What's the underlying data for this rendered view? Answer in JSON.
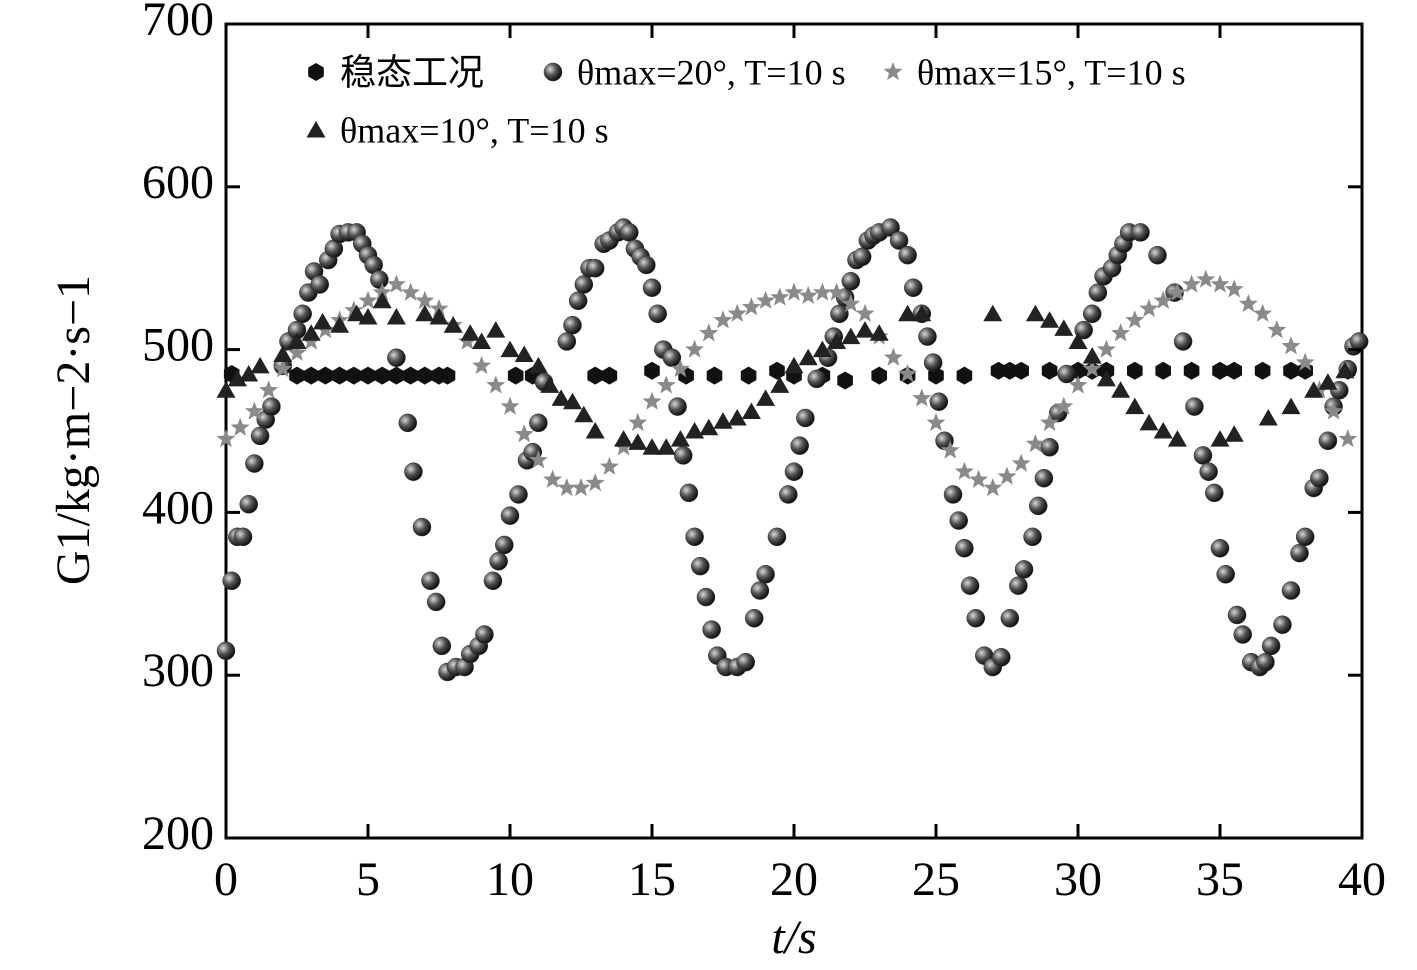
{
  "chart_data": {
    "type": "scatter",
    "xlabel": "t/s",
    "ylabel": "G1/kg·m−2·s−1",
    "xlim": [
      0,
      40
    ],
    "ylim": [
      200,
      700
    ],
    "xticks": [
      0,
      5,
      10,
      15,
      20,
      25,
      30,
      35,
      40
    ],
    "yticks": [
      200,
      300,
      400,
      500,
      600,
      700
    ],
    "series": [
      {
        "name": "稳态工况",
        "color": "#111111",
        "marker": "hexagon",
        "x": [
          0.2,
          2.5,
          3,
          3.5,
          4,
          4.5,
          5,
          5.5,
          6,
          6.5,
          7,
          7.5,
          7.8,
          10.2,
          10.8,
          13,
          13.5,
          15,
          16.2,
          17.2,
          18.4,
          19.4,
          20,
          21,
          21.8,
          23,
          24,
          25,
          26,
          27.2,
          27.6,
          28,
          29,
          30,
          30.5,
          31,
          32,
          33,
          34,
          35,
          35.5,
          36.5,
          37.5,
          38,
          39.5
        ],
        "values": [
          485,
          484,
          484,
          484,
          484,
          484,
          484,
          484,
          484,
          484,
          484,
          484,
          484,
          484,
          484,
          484,
          484,
          487,
          484,
          484,
          484,
          487,
          484,
          484,
          481,
          484,
          484,
          484,
          484,
          487,
          487,
          487,
          487,
          487,
          487,
          487,
          487,
          487,
          487,
          487,
          487,
          487,
          487,
          487,
          487
        ]
      },
      {
        "name": "θmax=20°, T=10 s",
        "color": "#333333",
        "marker": "circle",
        "x": [
          0,
          0.2,
          0.4,
          0.6,
          0.8,
          1.0,
          1.2,
          1.4,
          1.6,
          2,
          2.2,
          2.5,
          2.7,
          2.9,
          3.1,
          3.3,
          3.6,
          3.8,
          4.0,
          4.3,
          4.6,
          4.8,
          5.0,
          5.2,
          5.4,
          6,
          6.4,
          6.6,
          6.9,
          7.2,
          7.4,
          7.6,
          7.8,
          8.1,
          8.4,
          8.6,
          8.9,
          9.1,
          9.4,
          9.6,
          9.8,
          10.0,
          10.3,
          10.6,
          10.8,
          11.0,
          11.2,
          12,
          12.2,
          12.4,
          12.6,
          12.8,
          13,
          13.3,
          13.5,
          13.8,
          14.0,
          14.2,
          14.4,
          14.6,
          14.8,
          15.0,
          15.2,
          15.4,
          15.7,
          15.9,
          16.1,
          16.3,
          16.5,
          16.7,
          16.9,
          17.1,
          17.3,
          17.6,
          18.0,
          18.3,
          18.6,
          18.8,
          19.0,
          19.4,
          19.8,
          20.0,
          20.2,
          20.4,
          20.8,
          21.2,
          21.4,
          21.6,
          21.8,
          22.0,
          22.2,
          22.4,
          22.6,
          22.8,
          23.0,
          23.4,
          23.7,
          24.0,
          24.2,
          24.5,
          24.7,
          24.9,
          25.1,
          25.3,
          25.6,
          25.8,
          26.0,
          26.2,
          26.4,
          26.7,
          27.0,
          27.3,
          27.6,
          27.9,
          28.1,
          28.4,
          28.6,
          28.8,
          29.0,
          29.3,
          29.6,
          30.2,
          30.5,
          30.7,
          30.9,
          31.2,
          31.4,
          31.6,
          31.8,
          32.2,
          32.8,
          33.4,
          33.7,
          34.1,
          34.4,
          34.6,
          34.8,
          35.0,
          35.2,
          35.6,
          35.8,
          36.1,
          36.4,
          36.6,
          36.8,
          37.2,
          37.5,
          37.8,
          38.0,
          38.3,
          38.5,
          38.8,
          39.0,
          39.2,
          39.5,
          39.7,
          39.9
        ],
        "values": [
          315,
          358,
          385,
          385,
          405,
          430,
          447,
          457,
          465,
          490,
          505,
          512,
          522,
          535,
          548,
          540,
          555,
          562,
          571,
          572,
          572,
          565,
          558,
          552,
          543,
          495,
          455,
          425,
          391,
          358,
          345,
          318,
          302,
          305,
          305,
          313,
          318,
          325,
          358,
          370,
          380,
          398,
          411,
          432,
          437,
          455,
          480,
          505,
          515,
          530,
          540,
          550,
          550,
          565,
          567,
          572,
          575,
          572,
          562,
          557,
          552,
          538,
          522,
          500,
          495,
          465,
          435,
          412,
          385,
          367,
          348,
          328,
          312,
          305,
          305,
          308,
          335,
          352,
          362,
          385,
          411,
          425,
          441,
          458,
          482,
          495,
          508,
          522,
          532,
          542,
          555,
          557,
          567,
          570,
          572,
          575,
          567,
          558,
          538,
          522,
          508,
          492,
          468,
          444,
          411,
          395,
          378,
          355,
          335,
          312,
          305,
          311,
          335,
          355,
          365,
          385,
          404,
          421,
          440,
          461,
          485,
          512,
          522,
          535,
          545,
          550,
          558,
          565,
          572,
          572,
          558,
          535,
          505,
          465,
          435,
          425,
          412,
          378,
          362,
          337,
          325,
          308,
          305,
          308,
          318,
          331,
          352,
          375,
          385,
          415,
          421,
          444,
          465,
          475,
          488,
          502,
          505
        ]
      },
      {
        "name": "θmax=15°, T=10 s",
        "color": "#8a8a8a",
        "marker": "star",
        "x": [
          0,
          0.5,
          1,
          1.5,
          2,
          2.5,
          3,
          3.5,
          4,
          4.5,
          5,
          5.5,
          6,
          6.5,
          7,
          7.5,
          8,
          8.5,
          9,
          9.5,
          10,
          10.5,
          11,
          11.5,
          12,
          12.5,
          13,
          13.5,
          14,
          14.5,
          15,
          15.5,
          16,
          16.5,
          17,
          17.5,
          18,
          18.5,
          19,
          19.5,
          20,
          20.5,
          21,
          21.5,
          22,
          22.5,
          23,
          23.5,
          24,
          24.5,
          25,
          25.5,
          26,
          26.5,
          27,
          27.5,
          28,
          28.5,
          29,
          29.5,
          30,
          30.5,
          31,
          31.5,
          32,
          32.5,
          33,
          33.5,
          34,
          34.5,
          35,
          35.5,
          36,
          36.5,
          37,
          37.5,
          38,
          38.5,
          39,
          39.5
        ],
        "values": [
          445,
          452,
          462,
          475,
          488,
          498,
          505,
          512,
          518,
          524,
          530,
          535,
          540,
          535,
          530,
          525,
          515,
          505,
          490,
          478,
          465,
          448,
          432,
          420,
          415,
          415,
          418,
          428,
          440,
          455,
          468,
          478,
          488,
          500,
          510,
          518,
          522,
          526,
          530,
          532,
          535,
          533,
          535,
          535,
          528,
          522,
          508,
          495,
          485,
          470,
          455,
          438,
          425,
          420,
          415,
          422,
          430,
          442,
          455,
          465,
          478,
          488,
          500,
          510,
          518,
          525,
          530,
          535,
          540,
          543,
          540,
          537,
          528,
          522,
          512,
          502,
          492,
          475,
          462,
          445
        ]
      },
      {
        "name": "θmax=10°, T=10 s",
        "color": "#222222",
        "marker": "triangle",
        "x": [
          0,
          0.4,
          0.8,
          1.2,
          2,
          2.5,
          3,
          3.4,
          4,
          4.6,
          5,
          5.5,
          6,
          7,
          7.5,
          8,
          8.6,
          9,
          9.5,
          10,
          10.5,
          11,
          11.4,
          11.8,
          12.2,
          12.6,
          13,
          14,
          14.5,
          15,
          15.5,
          16,
          16.5,
          17,
          17.5,
          18,
          18.5,
          19,
          19.5,
          20,
          20.5,
          21,
          21.5,
          22,
          22.5,
          23,
          24,
          24.5,
          27,
          28.5,
          29,
          29.5,
          30,
          30.5,
          31,
          31.5,
          32,
          32.5,
          33,
          33.5,
          35,
          35.5,
          36.7,
          37.5,
          38.3,
          38.8,
          39.4
        ],
        "values": [
          475,
          482,
          485,
          490,
          497,
          505,
          510,
          517,
          515,
          522,
          520,
          530,
          520,
          522,
          520,
          515,
          510,
          505,
          512,
          500,
          497,
          490,
          478,
          470,
          468,
          460,
          450,
          445,
          443,
          440,
          440,
          445,
          450,
          452,
          456,
          458,
          462,
          470,
          478,
          490,
          495,
          500,
          505,
          508,
          512,
          510,
          522,
          522,
          522,
          522,
          518,
          513,
          505,
          496,
          482,
          475,
          465,
          455,
          450,
          445,
          445,
          448,
          458,
          465,
          475,
          480,
          487
        ]
      }
    ]
  }
}
